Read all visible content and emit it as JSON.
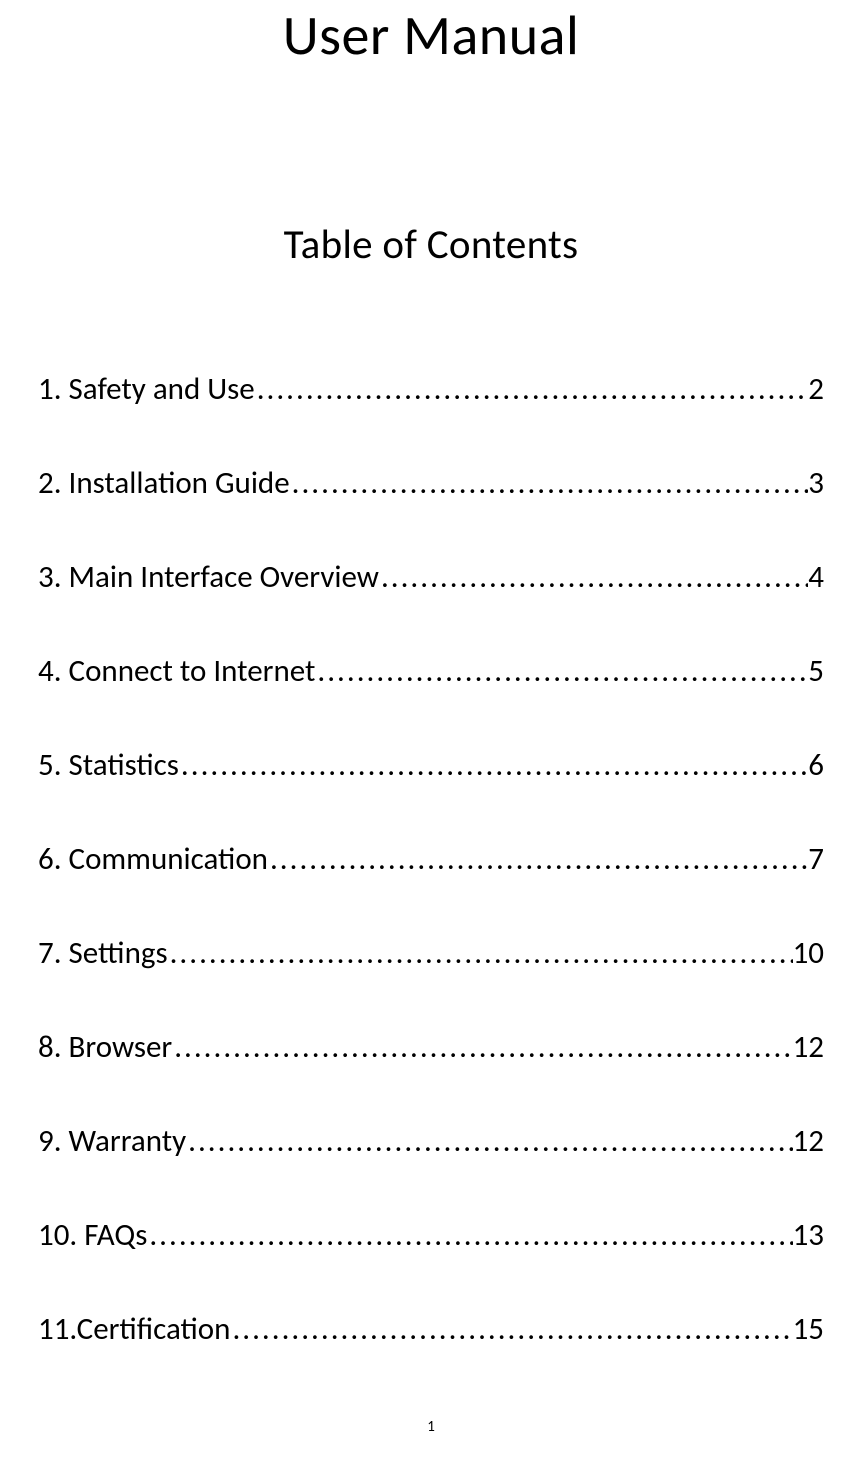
{
  "document": {
    "main_title": "User Manual",
    "toc_title": "Table of Contents",
    "page_number": "1",
    "background_color": "#ffffff",
    "text_color": "#000000",
    "main_title_fontsize": 56,
    "toc_title_fontsize": 41,
    "entry_fontsize": 31,
    "font_family": "Calibri"
  },
  "toc": {
    "entries": [
      {
        "label": "1. Safety and Use",
        "page": "2"
      },
      {
        "label": "2. Installation Guide",
        "page": "3"
      },
      {
        "label": "3. Main Interface Overview",
        "page": "4"
      },
      {
        "label": "4. Connect to Internet",
        "page": "5"
      },
      {
        "label": "5. Statistics",
        "page": "6"
      },
      {
        "label": "6. Communication",
        "page": "7"
      },
      {
        "label": "7. Settings",
        "page": "10"
      },
      {
        "label": "8. Browser",
        "page": "12"
      },
      {
        "label": "9. Warranty",
        "page": "12"
      },
      {
        "label": "10. FAQs",
        "page": "13"
      },
      {
        "label": "11.Certification",
        "page": "15"
      }
    ]
  }
}
